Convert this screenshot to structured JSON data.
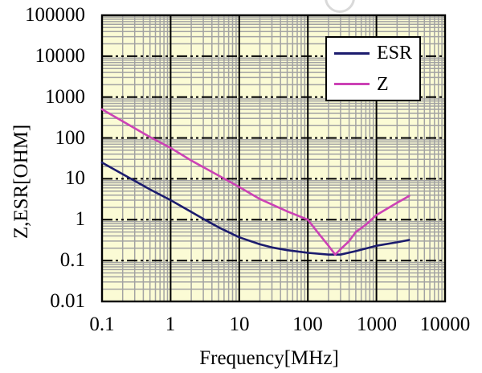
{
  "chart_data": {
    "type": "line",
    "xlabel": "Frequency[MHz]",
    "ylabel": "Z,ESR[OHM]",
    "x_scale": "log",
    "y_scale": "log",
    "xlim": [
      0.1,
      10000
    ],
    "ylim": [
      0.01,
      100000
    ],
    "x_ticks": [
      "0.1",
      "1",
      "10",
      "100",
      "1000",
      "10000"
    ],
    "y_ticks": [
      "100000",
      "10000",
      "1000",
      "100",
      "10",
      "1",
      "0.1",
      "0.01"
    ],
    "grid": {
      "background": "#FBFBD5",
      "minor_color": "#A3A3A3",
      "major_color": "#000000",
      "minor_on": true,
      "major_on": true
    },
    "legend": {
      "position": "top-right",
      "background": "#FFFFFF",
      "border_color": "#000000"
    },
    "series": [
      {
        "name": "ESR",
        "color": "#1C1C6E",
        "points": [
          [
            0.1,
            25
          ],
          [
            0.2,
            13
          ],
          [
            0.5,
            5.5
          ],
          [
            1,
            3
          ],
          [
            2,
            1.55
          ],
          [
            3,
            1.05
          ],
          [
            5,
            0.65
          ],
          [
            10,
            0.37
          ],
          [
            20,
            0.25
          ],
          [
            30,
            0.21
          ],
          [
            50,
            0.18
          ],
          [
            100,
            0.155
          ],
          [
            200,
            0.14
          ],
          [
            300,
            0.14
          ],
          [
            500,
            0.17
          ],
          [
            1000,
            0.23
          ],
          [
            2000,
            0.28
          ],
          [
            3000,
            0.32
          ]
        ]
      },
      {
        "name": "Z",
        "color": "#CC42B5",
        "points": [
          [
            0.1,
            500
          ],
          [
            0.2,
            255
          ],
          [
            0.5,
            105
          ],
          [
            1,
            57
          ],
          [
            2,
            28
          ],
          [
            5,
            12
          ],
          [
            10,
            6.3
          ],
          [
            20,
            3.2
          ],
          [
            50,
            1.6
          ],
          [
            100,
            1.0
          ],
          [
            150,
            0.42
          ],
          [
            200,
            0.23
          ],
          [
            250,
            0.14
          ],
          [
            300,
            0.19
          ],
          [
            400,
            0.3
          ],
          [
            500,
            0.5
          ],
          [
            700,
            0.75
          ],
          [
            1000,
            1.3
          ],
          [
            2000,
            2.6
          ],
          [
            3000,
            3.8
          ]
        ]
      }
    ]
  }
}
